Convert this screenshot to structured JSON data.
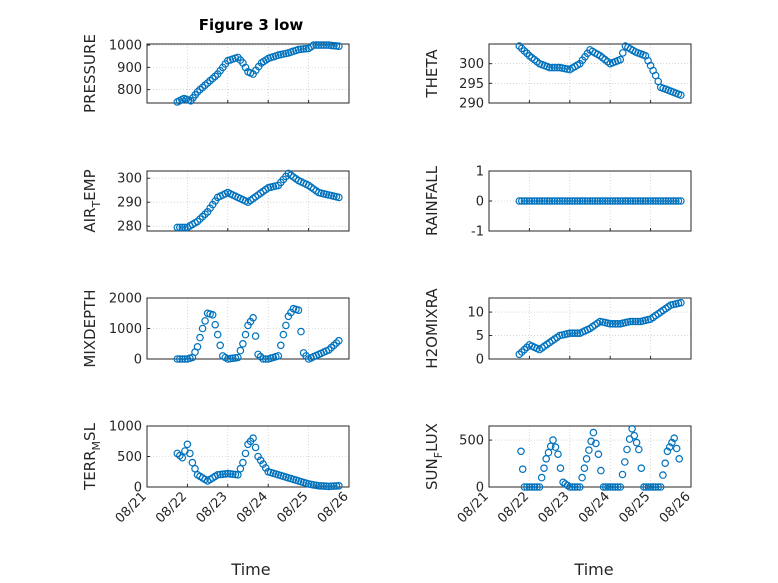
{
  "figure": {
    "title": "Figure 3 low",
    "xlabel": "Time",
    "date_ticks": [
      "08/21",
      "08/22",
      "08/23",
      "08/24",
      "08/25",
      "08/26"
    ],
    "marker_color": "#0072BD",
    "axes_color": "#262626",
    "grid_color": "#BDBDBD"
  },
  "chart_data": [
    {
      "type": "scatter",
      "ylabel": "PRESSURE",
      "ylim": [
        740,
        1005
      ],
      "yticks": [
        800,
        900,
        1000
      ],
      "xlim": [
        "08/21",
        "08/26"
      ],
      "grid": "on",
      "marker": "circle",
      "x": [
        "08/21 18:00",
        "08/21 22:00",
        "08/22 02:00",
        "08/22 06:00",
        "08/22 12:00",
        "08/22 18:00",
        "08/23 00:00",
        "08/23 06:00",
        "08/23 09:00",
        "08/23 12:00",
        "08/23 15:00",
        "08/23 20:00",
        "08/24 00:00",
        "08/24 06:00",
        "08/24 12:00",
        "08/24 18:00",
        "08/25 00:00",
        "08/25 03:00",
        "08/25 06:00",
        "08/25 12:00",
        "08/25 18:00"
      ],
      "y": [
        745,
        760,
        750,
        790,
        830,
        870,
        930,
        945,
        920,
        880,
        870,
        920,
        940,
        955,
        965,
        980,
        985,
        1000,
        1000,
        1000,
        995
      ]
    },
    {
      "type": "scatter",
      "ylabel": "THETA",
      "ylim": [
        290,
        305
      ],
      "yticks": [
        290,
        295,
        300
      ],
      "xlim": [
        "08/21",
        "08/26"
      ],
      "grid": "on",
      "marker": "circle",
      "x": [
        "08/21 18:00",
        "08/22 00:00",
        "08/22 06:00",
        "08/22 12:00",
        "08/22 18:00",
        "08/23 00:00",
        "08/23 06:00",
        "08/23 12:00",
        "08/23 18:00",
        "08/24 00:00",
        "08/24 06:00",
        "08/24 09:00",
        "08/24 15:00",
        "08/24 21:00",
        "08/25 03:00",
        "08/25 06:00",
        "08/25 12:00",
        "08/25 18:00"
      ],
      "y": [
        304.5,
        302,
        300,
        299,
        299,
        298.5,
        300,
        303.5,
        302,
        300,
        301,
        304.5,
        303,
        302,
        297,
        294,
        293,
        292
      ]
    },
    {
      "type": "scatter",
      "ylabel": "AIR_TEMP",
      "ylim": [
        278,
        303
      ],
      "yticks": [
        280,
        290,
        300
      ],
      "xlim": [
        "08/21",
        "08/26"
      ],
      "grid": "on",
      "marker": "circle",
      "x": [
        "08/21 18:00",
        "08/22 00:00",
        "08/22 06:00",
        "08/22 12:00",
        "08/22 18:00",
        "08/23 00:00",
        "08/23 06:00",
        "08/23 12:00",
        "08/23 18:00",
        "08/24 00:00",
        "08/24 06:00",
        "08/24 12:00",
        "08/24 18:00",
        "08/25 00:00",
        "08/25 06:00",
        "08/25 12:00",
        "08/25 18:00"
      ],
      "y": [
        279.5,
        279.5,
        282,
        286,
        292,
        294,
        292,
        290,
        293,
        296,
        297,
        302,
        299,
        297,
        294,
        293,
        292
      ]
    },
    {
      "type": "scatter",
      "ylabel": "RAINFALL",
      "ylim": [
        -1,
        1
      ],
      "yticks": [
        -1,
        0,
        1
      ],
      "xlim": [
        "08/21",
        "08/26"
      ],
      "grid": "on",
      "marker": "circle",
      "x": [
        "08/21 18:00",
        "08/22 06:00",
        "08/22 18:00",
        "08/23 06:00",
        "08/23 18:00",
        "08/24 06:00",
        "08/24 18:00",
        "08/25 06:00",
        "08/25 18:00"
      ],
      "y": [
        0,
        0,
        0,
        0,
        0,
        0,
        0,
        0,
        0
      ]
    },
    {
      "type": "scatter",
      "ylabel": "MIXDEPTH",
      "ylim": [
        0,
        2000
      ],
      "yticks": [
        0,
        1000,
        2000
      ],
      "xlim": [
        "08/21",
        "08/26"
      ],
      "grid": "on",
      "marker": "circle",
      "x": [
        "08/21 18:00",
        "08/22 00:00",
        "08/22 03:00",
        "08/22 06:00",
        "08/22 09:00",
        "08/22 12:00",
        "08/22 15:00",
        "08/22 18:00",
        "08/22 21:00",
        "08/23 00:00",
        "08/23 06:00",
        "08/23 09:00",
        "08/23 12:00",
        "08/23 15:00",
        "08/23 18:00",
        "08/23 21:00",
        "08/24 00:00",
        "08/24 06:00",
        "08/24 09:00",
        "08/24 12:00",
        "08/24 15:00",
        "08/24 18:00",
        "08/24 21:00",
        "08/25 00:00",
        "08/25 06:00",
        "08/25 12:00",
        "08/25 18:00"
      ],
      "y": [
        0,
        0,
        50,
        400,
        1000,
        1500,
        1450,
        800,
        100,
        0,
        50,
        500,
        1100,
        1350,
        150,
        0,
        0,
        100,
        800,
        1400,
        1650,
        1600,
        200,
        0,
        150,
        300,
        600
      ]
    },
    {
      "type": "scatter",
      "ylabel": "H2OMIXRA",
      "ylim": [
        0,
        13
      ],
      "yticks": [
        0,
        5,
        10
      ],
      "xlim": [
        "08/21",
        "08/26"
      ],
      "grid": "on",
      "marker": "circle",
      "x": [
        "08/21 18:00",
        "08/22 00:00",
        "08/22 06:00",
        "08/22 12:00",
        "08/22 18:00",
        "08/23 00:00",
        "08/23 06:00",
        "08/23 12:00",
        "08/23 18:00",
        "08/24 00:00",
        "08/24 06:00",
        "08/24 12:00",
        "08/24 18:00",
        "08/25 00:00",
        "08/25 06:00",
        "08/25 12:00",
        "08/25 18:00"
      ],
      "y": [
        1,
        3,
        2,
        3.5,
        5,
        5.5,
        5.5,
        6.5,
        8,
        7.5,
        7.5,
        8,
        8,
        8.5,
        10,
        11.5,
        12
      ]
    },
    {
      "type": "scatter",
      "ylabel": "TERR_MSL",
      "ylim": [
        0,
        1000
      ],
      "yticks": [
        0,
        500,
        1000
      ],
      "xlim": [
        "08/21",
        "08/26"
      ],
      "grid": "on",
      "marker": "circle",
      "x": [
        "08/21 18:00",
        "08/21 21:00",
        "08/22 00:00",
        "08/22 03:00",
        "08/22 06:00",
        "08/22 12:00",
        "08/22 18:00",
        "08/23 00:00",
        "08/23 06:00",
        "08/23 09:00",
        "08/23 12:00",
        "08/23 15:00",
        "08/23 18:00",
        "08/24 00:00",
        "08/24 06:00",
        "08/24 12:00",
        "08/24 18:00",
        "08/25 00:00",
        "08/25 06:00",
        "08/25 12:00",
        "08/25 18:00"
      ],
      "y": [
        550,
        480,
        700,
        400,
        200,
        100,
        200,
        220,
        200,
        400,
        700,
        800,
        500,
        250,
        200,
        150,
        100,
        50,
        20,
        10,
        20
      ]
    },
    {
      "type": "scatter",
      "ylabel": "SUN_FLUX",
      "ylim": [
        0,
        650
      ],
      "yticks": [
        0,
        500
      ],
      "xlim": [
        "08/21",
        "08/26"
      ],
      "grid": "on",
      "marker": "circle",
      "x": [
        "08/21 19:00",
        "08/21 21:00",
        "08/22 00:00",
        "08/22 06:00",
        "08/22 10:00",
        "08/22 14:00",
        "08/22 17:00",
        "08/22 20:00",
        "08/23 00:00",
        "08/23 06:00",
        "08/23 10:00",
        "08/23 14:00",
        "08/23 17:00",
        "08/23 20:00",
        "08/24 00:00",
        "08/24 06:00",
        "08/24 10:00",
        "08/24 13:00",
        "08/24 17:00",
        "08/24 20:00",
        "08/25 00:00",
        "08/25 06:00",
        "08/25 10:00",
        "08/25 14:00",
        "08/25 17:00"
      ],
      "y": [
        380,
        0,
        0,
        0,
        300,
        500,
        350,
        50,
        0,
        0,
        300,
        580,
        350,
        0,
        0,
        0,
        400,
        620,
        400,
        0,
        0,
        0,
        380,
        520,
        300
      ]
    }
  ]
}
